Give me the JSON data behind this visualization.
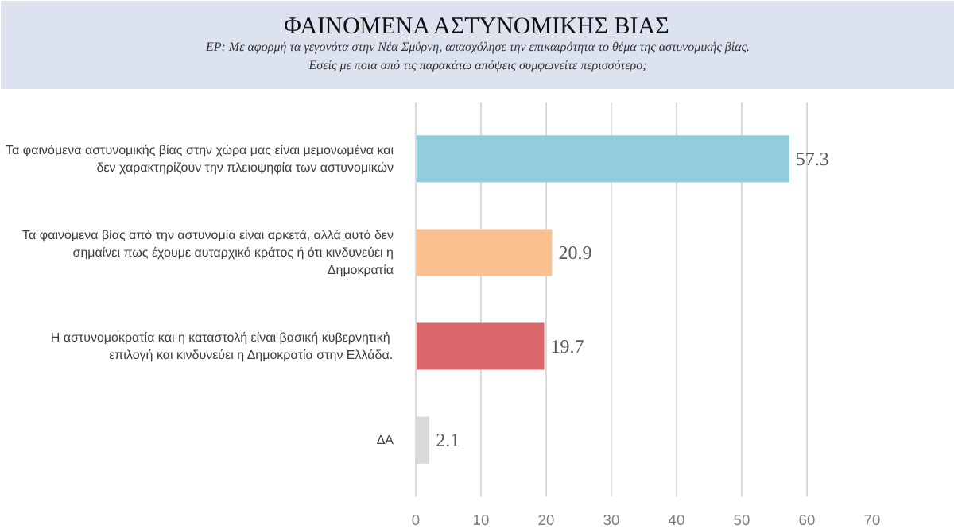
{
  "chart_data": {
    "type": "bar",
    "orientation": "horizontal",
    "title": "ΦΑΙΝΟΜΕΝΑ ΑΣΤΥΝΟΜΙΚΗΣ ΒΙΑΣ",
    "subtitle": "ΕΡ: Με αφορμή τα γεγονότα στην Νέα Σμύρνη, απασχόλησε την επικαιρότητα το θέμα της αστυνομικής βίας.\nΕσείς με ποια από τις παρακάτω απόψεις συμφωνείτε περισσότερο;",
    "categories": [
      "Τα φαινόμενα αστυνομικής βίας στην χώρα μας είναι μεμονωμένα και\nδεν χαρακτηρίζουν την πλειοψηφία των αστυνομικών",
      "Τα φαινόμενα βίας από την αστυνομία είναι αρκετά, αλλά αυτό δεν\nσημαίνει πως έχουμε αυταρχικό κράτος ή ότι κινδυνεύει η\nΔημοκρατία",
      "Η αστυνομοκρατία  και η καταστολή είναι βασική κυβερνητική\nεπιλογή και κινδυνεύει η Δημοκρατία στην Ελλάδα.",
      "ΔΑ"
    ],
    "values": [
      57.3,
      20.9,
      19.7,
      2.1
    ],
    "colors": [
      "#92cddc",
      "#fac090",
      "#d9676a",
      "#d9d9d9"
    ],
    "xlim": [
      0,
      70
    ],
    "xticks": [
      0,
      10,
      20,
      30,
      40,
      50,
      60,
      70
    ],
    "grid": "x",
    "data_labels": true
  }
}
